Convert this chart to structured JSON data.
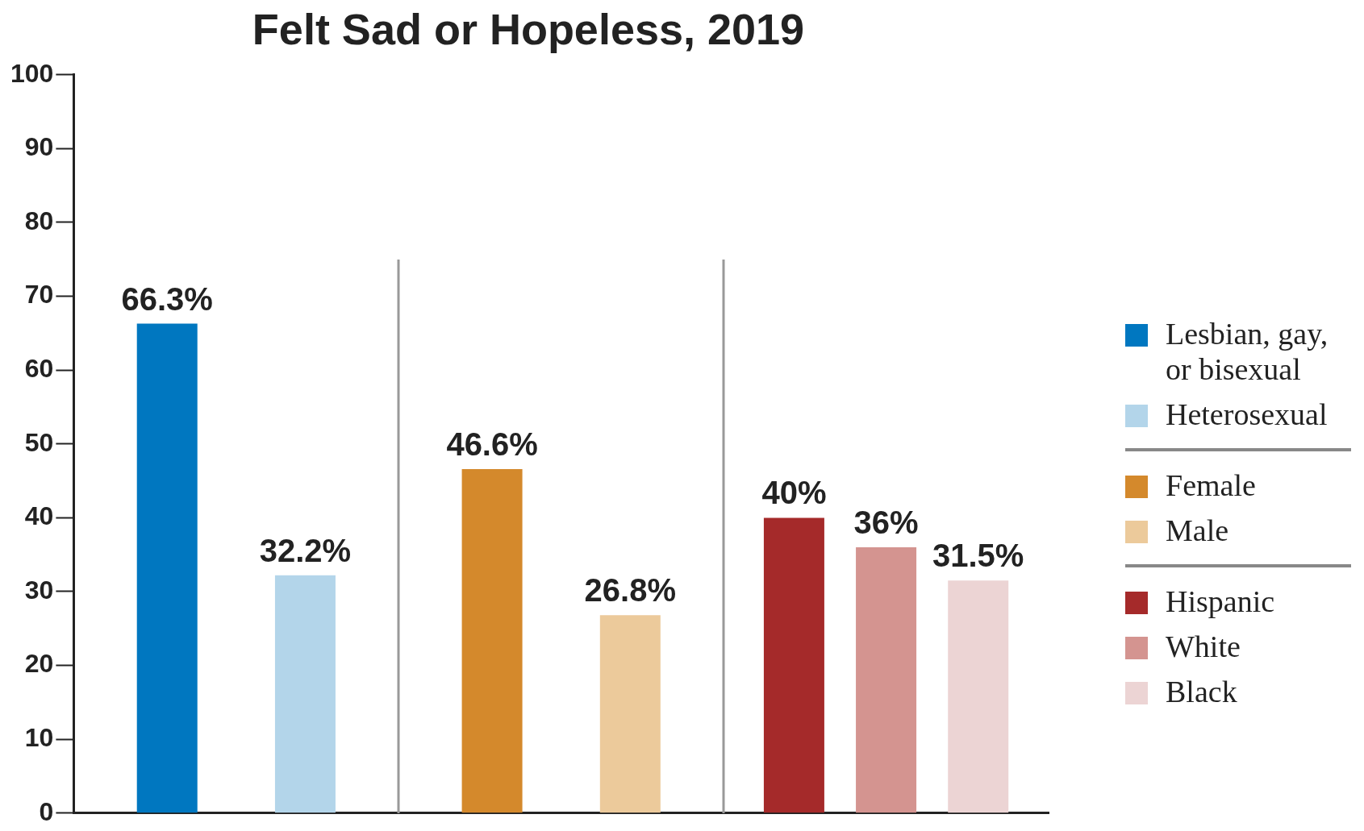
{
  "chart_data": {
    "type": "bar",
    "title": "Felt Sad or Hopeless, 2019",
    "categories": [
      null,
      null,
      null
    ],
    "series": [
      {
        "name": "Lesbian, gay, or bisexual",
        "color": "#0077c0",
        "values": [
          66.3,
          null,
          null
        ],
        "value_labels": [
          "66.3%",
          null,
          null
        ]
      },
      {
        "name": "Heterosexual",
        "color": "#b3d5ea",
        "values": [
          32.2,
          null,
          null
        ],
        "value_labels": [
          "32.2%",
          null,
          null
        ]
      },
      {
        "name": "Female",
        "color": "#d4892c",
        "values": [
          null,
          46.6,
          null
        ],
        "value_labels": [
          null,
          "46.6%",
          null
        ]
      },
      {
        "name": "Male",
        "color": "#ecca9b",
        "values": [
          null,
          26.8,
          null
        ],
        "value_labels": [
          null,
          "26.8%",
          null
        ]
      },
      {
        "name": "Hispanic",
        "color": "#a52a2a",
        "values": [
          null,
          null,
          40
        ],
        "value_labels": [
          null,
          null,
          "40%"
        ]
      },
      {
        "name": "White",
        "color": "#d49490",
        "values": [
          null,
          null,
          36
        ],
        "value_labels": [
          null,
          null,
          "36%"
        ]
      },
      {
        "name": "Black",
        "color": "#ecd4d4",
        "values": [
          null,
          null,
          31.5
        ],
        "value_labels": [
          null,
          null,
          "31.5%"
        ]
      }
    ],
    "ylim": [
      0,
      100
    ],
    "yticks": [
      0,
      10,
      20,
      30,
      40,
      50,
      60,
      70,
      80,
      90,
      100
    ],
    "grid": false,
    "legend": "right"
  }
}
